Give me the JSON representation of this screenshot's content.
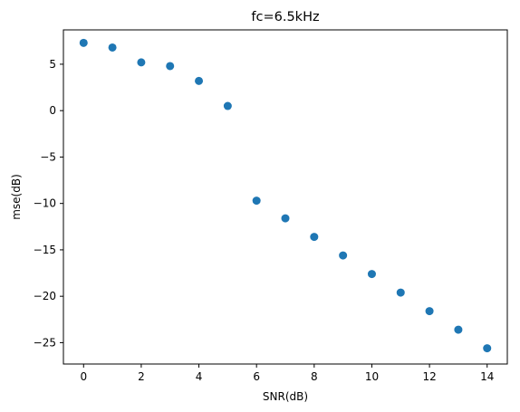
{
  "chart_data": {
    "type": "scatter",
    "title": "fc=6.5kHz",
    "xlabel": "SNR(dB)",
    "ylabel": "mse(dB)",
    "xlim": [
      -0.7,
      14.7
    ],
    "ylim": [
      -27.3,
      8.7
    ],
    "xticks": [
      0,
      2,
      4,
      6,
      8,
      10,
      12,
      14
    ],
    "yticks": [
      5,
      0,
      -5,
      -10,
      -15,
      -20,
      -25
    ],
    "xtick_labels": [
      "0",
      "2",
      "4",
      "6",
      "8",
      "10",
      "12",
      "14"
    ],
    "ytick_labels": [
      "5",
      "0",
      "−5",
      "−10",
      "−15",
      "−20",
      "−25"
    ],
    "grid": false,
    "marker_color": "#1f77b4",
    "series": [
      {
        "x": [
          0,
          1,
          2,
          3,
          4,
          5,
          6,
          7,
          8,
          9,
          10,
          11,
          12,
          13,
          14
        ],
        "y": [
          7.3,
          6.8,
          5.2,
          4.8,
          3.2,
          0.5,
          -9.7,
          -11.6,
          -13.6,
          -15.6,
          -17.6,
          -19.6,
          -21.6,
          -23.6,
          -25.6
        ]
      }
    ]
  }
}
